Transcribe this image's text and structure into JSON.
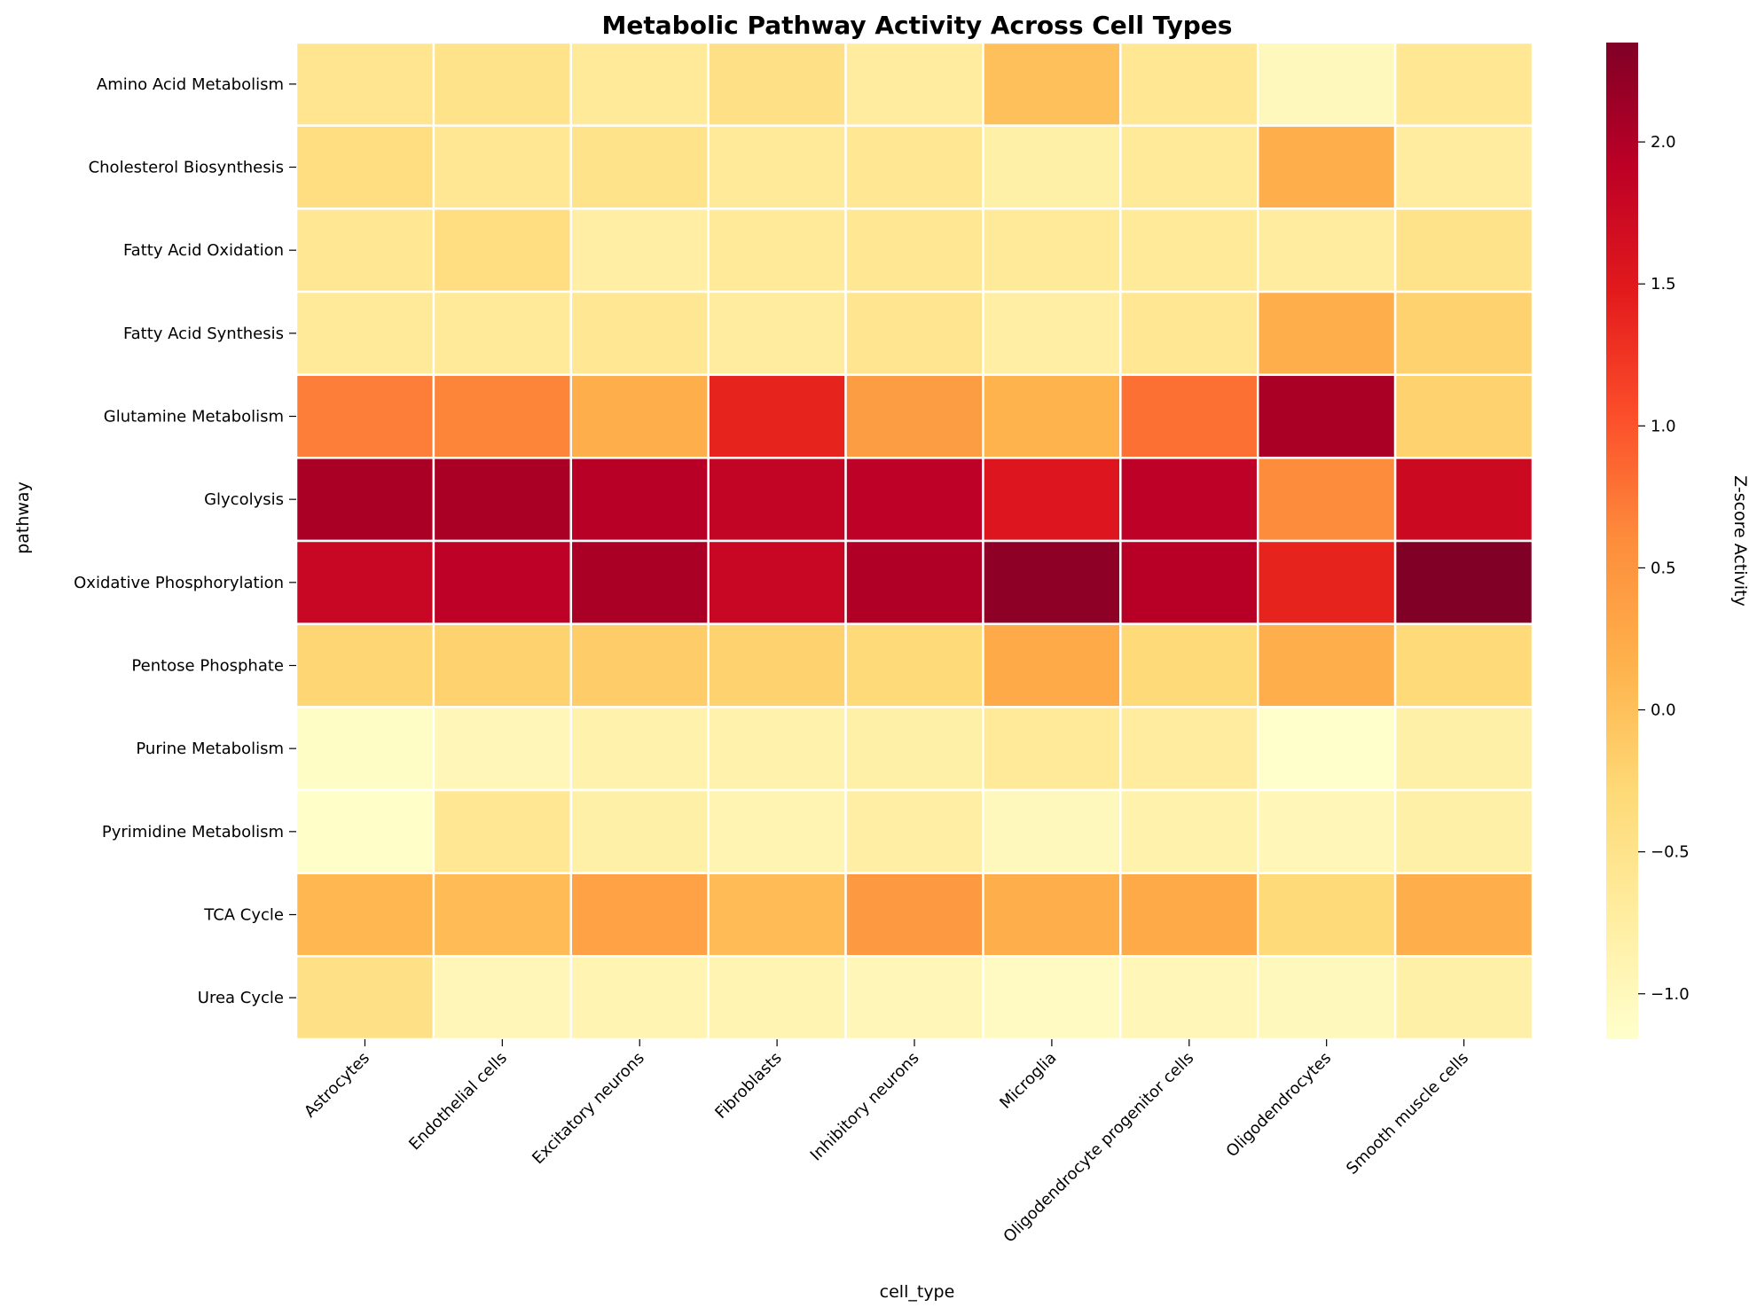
{
  "chart_data": {
    "type": "heatmap",
    "title": "Metabolic Pathway Activity Across Cell Types",
    "xlabel": "cell_type",
    "ylabel": "pathway",
    "colorbar_label": "Z-score Activity",
    "colormap": "YlOrRd",
    "vmin": -1.16,
    "vmax": 2.35,
    "colorbar_ticks": [
      -1.0,
      -0.5,
      0.0,
      0.5,
      1.0,
      1.5,
      2.0
    ],
    "colorbar_tick_labels": [
      "−1.0",
      "−0.5",
      "0.0",
      "0.5",
      "1.0",
      "1.5",
      "2.0"
    ],
    "gridlines": "white cell borders",
    "x_categories": [
      "Astrocytes",
      "Endothelial cells",
      "Excitatory neurons",
      "Fibroblasts",
      "Inhibitory neurons",
      "Microglia",
      "Oligodendrocyte progenitor cells",
      "Oligodendrocytes",
      "Smooth muscle cells"
    ],
    "y_categories": [
      "Amino Acid Metabolism",
      "Cholesterol Biosynthesis",
      "Fatty Acid Oxidation",
      "Fatty Acid Synthesis",
      "Glutamine Metabolism",
      "Glycolysis",
      "Oxidative Phosphorylation",
      "Pentose Phosphate",
      "Purine Metabolism",
      "Pyrimidine Metabolism",
      "TCA Cycle",
      "Urea Cycle"
    ],
    "values": [
      [
        -0.55,
        -0.5,
        -0.65,
        -0.45,
        -0.7,
        0.0,
        -0.6,
        -1.0,
        -0.6
      ],
      [
        -0.4,
        -0.6,
        -0.5,
        -0.65,
        -0.6,
        -0.8,
        -0.65,
        0.2,
        -0.7
      ],
      [
        -0.6,
        -0.4,
        -0.75,
        -0.65,
        -0.6,
        -0.65,
        -0.65,
        -0.7,
        -0.5
      ],
      [
        -0.65,
        -0.65,
        -0.6,
        -0.7,
        -0.55,
        -0.75,
        -0.6,
        0.2,
        -0.2
      ],
      [
        0.7,
        0.65,
        0.2,
        1.4,
        0.4,
        0.15,
        0.8,
        2.05,
        -0.2
      ],
      [
        2.05,
        2.05,
        1.95,
        1.85,
        1.9,
        1.55,
        1.9,
        0.6,
        1.75
      ],
      [
        1.8,
        1.9,
        2.05,
        1.8,
        2.0,
        2.25,
        1.95,
        1.4,
        2.35
      ],
      [
        -0.25,
        -0.2,
        -0.15,
        -0.2,
        -0.3,
        0.25,
        -0.3,
        0.2,
        -0.3
      ],
      [
        -1.1,
        -0.95,
        -0.85,
        -0.85,
        -0.8,
        -0.65,
        -0.7,
        -1.15,
        -0.8
      ],
      [
        -1.12,
        -0.6,
        -0.8,
        -0.9,
        -0.75,
        -1.0,
        -0.85,
        -0.95,
        -0.8
      ],
      [
        0.1,
        0.05,
        0.35,
        0.05,
        0.45,
        0.2,
        0.25,
        -0.3,
        0.2
      ],
      [
        -0.45,
        -0.95,
        -0.9,
        -0.9,
        -0.95,
        -1.05,
        -0.95,
        -1.0,
        -0.8
      ]
    ]
  }
}
